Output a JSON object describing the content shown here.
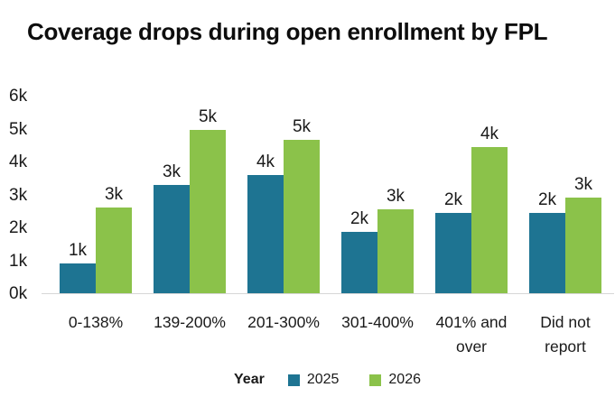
{
  "page": {
    "background": "#ffffff",
    "text_color": "#1a1a1a",
    "axis_line_color": "#d6d6d6"
  },
  "chart_data": {
    "type": "bar",
    "title": "Coverage drops during open enrollment by FPL",
    "xlabel": "",
    "ylabel": "",
    "categories": [
      "0-138%",
      "139-200%",
      "201-300%",
      "301-400%",
      "401% and over",
      "Did not report"
    ],
    "series": [
      {
        "name": "2025",
        "color": "#1E7492",
        "values": [
          900,
          3300,
          3600,
          1850,
          2450,
          2450
        ],
        "data_labels": [
          "1k",
          "3k",
          "4k",
          "2k",
          "2k",
          "2k"
        ]
      },
      {
        "name": "2026",
        "color": "#8BC24A",
        "values": [
          2600,
          4950,
          4650,
          2550,
          4450,
          2900
        ],
        "data_labels": [
          "3k",
          "5k",
          "5k",
          "3k",
          "4k",
          "3k"
        ]
      }
    ],
    "ylim": [
      0,
      6000
    ],
    "ytick_values": [
      0,
      1000,
      2000,
      3000,
      4000,
      5000,
      6000
    ],
    "ytick_labels": [
      "0k",
      "1k",
      "2k",
      "3k",
      "4k",
      "5k",
      "6k"
    ],
    "legend_title": "Year",
    "legend_position": "bottom",
    "grid": false
  }
}
